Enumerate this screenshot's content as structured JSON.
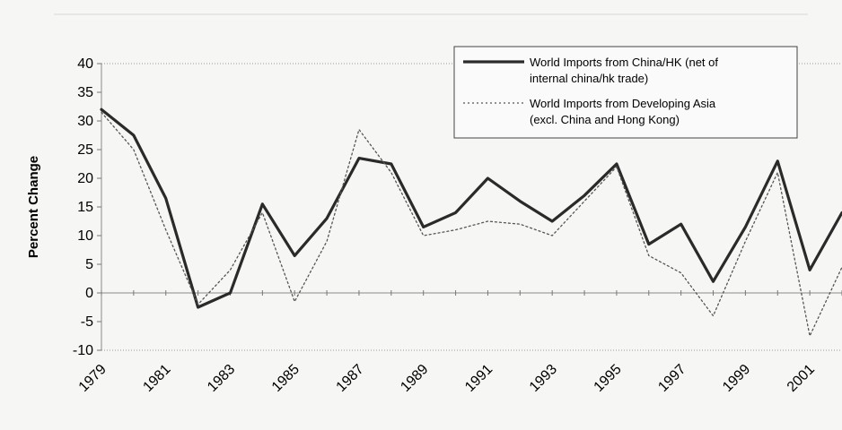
{
  "chart_data": {
    "type": "line",
    "title": "",
    "xlabel": "",
    "ylabel": "Percent Change",
    "ylim": [
      -10,
      40
    ],
    "yticks": [
      40,
      35,
      30,
      25,
      20,
      15,
      10,
      5,
      0,
      -5,
      -10
    ],
    "x": [
      1979,
      1980,
      1981,
      1982,
      1983,
      1984,
      1985,
      1986,
      1987,
      1988,
      1989,
      1990,
      1991,
      1992,
      1993,
      1994,
      1995,
      1996,
      1997,
      1998,
      1999,
      2000,
      2001,
      2002
    ],
    "xtick_labels": [
      "1979",
      "1981",
      "1983",
      "1985",
      "1987",
      "1989",
      "1991",
      "1993",
      "1995",
      "1997",
      "1999",
      "2001"
    ],
    "grid": false,
    "legend_position": "top-right",
    "legend_lines": [
      [
        "World Imports from China/HK (net of",
        "internal china/hk trade)"
      ],
      [
        "World Imports from Developing Asia",
        "(excl. China and Hong Kong)"
      ]
    ],
    "series": [
      {
        "style": "solid",
        "color": "#2a2a2a",
        "values": [
          32,
          27.5,
          16.5,
          -2.5,
          0,
          15.5,
          6.5,
          13,
          23.5,
          22.5,
          11.5,
          14,
          20,
          16,
          12.5,
          17,
          22.5,
          8.5,
          12,
          2,
          11.5,
          23,
          4,
          14
        ]
      },
      {
        "style": "dotted",
        "color": "#555555",
        "values": [
          31.5,
          25,
          11,
          -2,
          4,
          14,
          -1.5,
          9,
          28.5,
          21,
          10,
          11,
          12.5,
          12,
          10,
          16,
          22,
          6.5,
          3.5,
          -4,
          9,
          21,
          -7.5,
          4.5
        ]
      }
    ]
  }
}
